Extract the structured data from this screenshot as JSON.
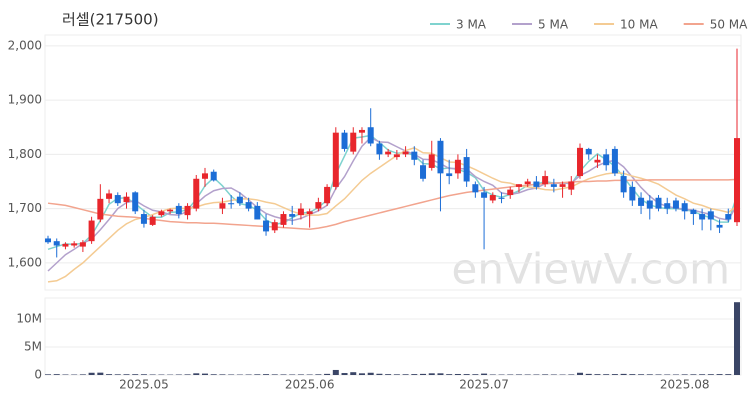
{
  "chart_data": [
    {
      "type": "candlestick",
      "title": "러셀(217500)",
      "watermark": "enViewV.com",
      "up_color": "#e8262c",
      "down_color": "#1c6dd6",
      "open": [
        1645,
        1640,
        1630,
        1632,
        1630,
        1640,
        1680,
        1718,
        1725,
        1712,
        1730,
        1690,
        1670,
        1688,
        1695,
        1705,
        1688,
        1700,
        1755,
        1768,
        1700,
        1710,
        1722,
        1712,
        1705,
        1678,
        1660,
        1670,
        1690,
        1688,
        1690,
        1700,
        1710,
        1740,
        1840,
        1805,
        1840,
        1850,
        1820,
        1800,
        1795,
        1800,
        1805,
        1780,
        1775,
        1825,
        1765,
        1765,
        1795,
        1745,
        1730,
        1715,
        1720,
        1725,
        1740,
        1745,
        1750,
        1745,
        1745,
        1740,
        1735,
        1760,
        1810,
        1785,
        1800,
        1810,
        1760,
        1740,
        1720,
        1715,
        1720,
        1710,
        1715,
        1710,
        1698,
        1690,
        1695,
        1670,
        1690,
        1675
      ],
      "high": [
        1650,
        1645,
        1638,
        1640,
        1642,
        1685,
        1745,
        1735,
        1730,
        1730,
        1732,
        1698,
        1688,
        1698,
        1700,
        1710,
        1710,
        1762,
        1775,
        1772,
        1720,
        1725,
        1730,
        1720,
        1712,
        1690,
        1680,
        1695,
        1705,
        1710,
        1700,
        1720,
        1745,
        1850,
        1845,
        1850,
        1850,
        1885,
        1825,
        1810,
        1808,
        1815,
        1815,
        1790,
        1825,
        1830,
        1790,
        1800,
        1810,
        1750,
        1740,
        1730,
        1730,
        1740,
        1745,
        1755,
        1760,
        1770,
        1755,
        1750,
        1760,
        1820,
        1812,
        1800,
        1810,
        1815,
        1770,
        1750,
        1730,
        1725,
        1725,
        1720,
        1720,
        1715,
        1700,
        1700,
        1700,
        1680,
        1700,
        1995
      ],
      "low": [
        1635,
        1610,
        1625,
        1628,
        1620,
        1635,
        1675,
        1710,
        1705,
        1700,
        1690,
        1665,
        1668,
        1685,
        1690,
        1682,
        1680,
        1695,
        1740,
        1750,
        1690,
        1700,
        1705,
        1695,
        1680,
        1650,
        1655,
        1665,
        1670,
        1680,
        1665,
        1695,
        1705,
        1735,
        1805,
        1800,
        1820,
        1815,
        1790,
        1795,
        1790,
        1795,
        1780,
        1750,
        1770,
        1695,
        1745,
        1755,
        1740,
        1720,
        1625,
        1710,
        1710,
        1718,
        1730,
        1740,
        1735,
        1740,
        1730,
        1720,
        1725,
        1755,
        1790,
        1775,
        1770,
        1760,
        1720,
        1705,
        1690,
        1680,
        1695,
        1690,
        1695,
        1680,
        1670,
        1660,
        1660,
        1655,
        1675,
        1668
      ],
      "close": [
        1638,
        1632,
        1635,
        1636,
        1638,
        1678,
        1718,
        1728,
        1710,
        1722,
        1695,
        1672,
        1685,
        1695,
        1698,
        1690,
        1705,
        1755,
        1765,
        1752,
        1710,
        1708,
        1710,
        1700,
        1680,
        1658,
        1675,
        1690,
        1685,
        1700,
        1695,
        1712,
        1740,
        1840,
        1810,
        1840,
        1845,
        1820,
        1800,
        1805,
        1800,
        1805,
        1790,
        1755,
        1800,
        1765,
        1760,
        1790,
        1750,
        1730,
        1720,
        1725,
        1718,
        1735,
        1745,
        1750,
        1740,
        1760,
        1740,
        1745,
        1750,
        1812,
        1800,
        1790,
        1780,
        1765,
        1730,
        1715,
        1705,
        1700,
        1700,
        1700,
        1700,
        1695,
        1690,
        1680,
        1680,
        1665,
        1680,
        1830
      ],
      "series": [
        {
          "name": "3 MA",
          "color": "#7fd3cf",
          "values": [
            1625,
            1630,
            1635,
            1634,
            1636,
            1651,
            1678,
            1708,
            1719,
            1720,
            1709,
            1696,
            1684,
            1684,
            1693,
            1694,
            1698,
            1717,
            1742,
            1757,
            1742,
            1723,
            1709,
            1706,
            1697,
            1679,
            1671,
            1674,
            1683,
            1692,
            1693,
            1702,
            1716,
            1764,
            1797,
            1830,
            1832,
            1835,
            1822,
            1808,
            1802,
            1803,
            1798,
            1783,
            1782,
            1773,
            1775,
            1772,
            1767,
            1757,
            1733,
            1725,
            1721,
            1726,
            1733,
            1743,
            1745,
            1750,
            1747,
            1748,
            1745,
            1769,
            1787,
            1801,
            1790,
            1778,
            1758,
            1737,
            1717,
            1707,
            1702,
            1700,
            1700,
            1698,
            1695,
            1688,
            1683,
            1675,
            1675,
            1725
          ]
        },
        {
          "name": "5 MA",
          "color": "#b3a1cc",
          "values": [
            1585,
            1600,
            1615,
            1625,
            1636,
            1644,
            1661,
            1680,
            1700,
            1711,
            1715,
            1705,
            1697,
            1694,
            1689,
            1688,
            1695,
            1709,
            1723,
            1733,
            1737,
            1738,
            1729,
            1716,
            1702,
            1691,
            1685,
            1681,
            1678,
            1682,
            1689,
            1696,
            1706,
            1737,
            1759,
            1788,
            1815,
            1831,
            1823,
            1822,
            1814,
            1806,
            1800,
            1791,
            1790,
            1783,
            1774,
            1774,
            1773,
            1759,
            1750,
            1743,
            1729,
            1726,
            1729,
            1735,
            1738,
            1746,
            1747,
            1747,
            1747,
            1761,
            1769,
            1779,
            1786,
            1789,
            1777,
            1758,
            1739,
            1723,
            1710,
            1704,
            1701,
            1699,
            1697,
            1693,
            1689,
            1682,
            1679,
            1707
          ]
        },
        {
          "name": "10 MA",
          "color": "#f4cb93",
          "values": [
            1565,
            1567,
            1575,
            1588,
            1600,
            1615,
            1630,
            1645,
            1660,
            1672,
            1680,
            1684,
            1689,
            1695,
            1700,
            1701,
            1700,
            1703,
            1708,
            1711,
            1712,
            1715,
            1718,
            1718,
            1716,
            1712,
            1709,
            1702,
            1695,
            1690,
            1688,
            1688,
            1691,
            1705,
            1718,
            1735,
            1752,
            1765,
            1776,
            1787,
            1798,
            1807,
            1812,
            1803,
            1802,
            1794,
            1786,
            1785,
            1779,
            1772,
            1764,
            1756,
            1749,
            1747,
            1742,
            1740,
            1738,
            1735,
            1734,
            1737,
            1740,
            1748,
            1755,
            1760,
            1764,
            1766,
            1765,
            1760,
            1756,
            1751,
            1745,
            1735,
            1725,
            1718,
            1710,
            1706,
            1700,
            1697,
            1693,
            1705
          ]
        },
        {
          "name": "50 MA",
          "color": "#f2a48e",
          "values": [
            1710,
            1708,
            1706,
            1702,
            1698,
            1694,
            1690,
            1688,
            1686,
            1685,
            1684,
            1682,
            1680,
            1678,
            1676,
            1675,
            1674,
            1674,
            1673,
            1673,
            1672,
            1671,
            1670,
            1669,
            1668,
            1667,
            1666,
            1665,
            1664,
            1663,
            1662,
            1664,
            1667,
            1671,
            1676,
            1680,
            1684,
            1688,
            1692,
            1696,
            1700,
            1704,
            1708,
            1712,
            1716,
            1720,
            1724,
            1727,
            1730,
            1732,
            1734,
            1736,
            1738,
            1740,
            1742,
            1743,
            1745,
            1746,
            1747,
            1748,
            1749,
            1750,
            1750,
            1751,
            1751,
            1752,
            1752,
            1752,
            1752,
            1753,
            1753,
            1753,
            1753,
            1753,
            1753,
            1753,
            1753,
            1753,
            1753,
            1754
          ]
        }
      ],
      "ylim": [
        1550,
        2020
      ],
      "yticks": [
        {
          "value": 1600,
          "label": "1,600"
        },
        {
          "value": 1700,
          "label": "1,700"
        },
        {
          "value": 1800,
          "label": "1,800"
        },
        {
          "value": 1900,
          "label": "1,900"
        },
        {
          "value": 2000,
          "label": "2,000"
        }
      ],
      "grid": true,
      "legend": "top-right"
    },
    {
      "type": "bar",
      "color": "#3a4566",
      "categories": [
        null,
        null,
        null,
        null,
        null,
        null,
        null,
        null,
        null,
        null,
        null,
        "2025.05",
        null,
        null,
        null,
        null,
        null,
        null,
        null,
        null,
        null,
        null,
        null,
        null,
        null,
        null,
        null,
        null,
        null,
        null,
        "2025.06",
        null,
        null,
        null,
        null,
        null,
        null,
        null,
        null,
        null,
        null,
        null,
        null,
        null,
        null,
        null,
        null,
        null,
        null,
        null,
        "2025.07",
        null,
        null,
        null,
        null,
        null,
        null,
        null,
        null,
        null,
        null,
        null,
        null,
        null,
        null,
        null,
        null,
        null,
        null,
        null,
        null,
        null,
        null,
        "2025.08",
        null,
        null,
        null,
        null,
        null,
        null
      ],
      "values": [
        120000,
        150000,
        90000,
        80000,
        110000,
        400000,
        420000,
        150000,
        120000,
        130000,
        140000,
        130000,
        90000,
        80000,
        70000,
        90000,
        110000,
        300000,
        250000,
        130000,
        110000,
        90000,
        80000,
        90000,
        120000,
        150000,
        110000,
        100000,
        90000,
        100000,
        90000,
        120000,
        200000,
        900000,
        350000,
        500000,
        300000,
        400000,
        220000,
        150000,
        120000,
        130000,
        160000,
        200000,
        300000,
        300000,
        150000,
        180000,
        160000,
        140000,
        250000,
        90000,
        80000,
        90000,
        100000,
        90000,
        90000,
        110000,
        90000,
        80000,
        100000,
        400000,
        200000,
        150000,
        140000,
        160000,
        200000,
        150000,
        130000,
        120000,
        100000,
        90000,
        90000,
        110000,
        120000,
        130000,
        140000,
        160000,
        150000,
        13000000
      ],
      "ylim": [
        0,
        13750000
      ],
      "yticks": [
        0,
        {
          "value": 5000000,
          "label": "5M"
        },
        {
          "value": 10000000,
          "label": "10M"
        }
      ],
      "grid": true
    }
  ]
}
